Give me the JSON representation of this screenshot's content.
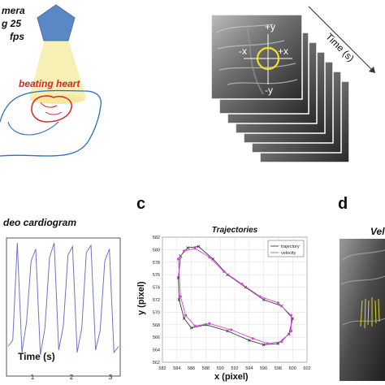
{
  "panel_a": {
    "camera_lines": [
      "mera",
      "g 25",
      "fps"
    ],
    "heart_label": "beating heart"
  },
  "panel_b": {
    "axis_plus_y": "+y",
    "axis_minus_x": "-x",
    "axis_plus_x": "+x",
    "axis_minus_y": "-y",
    "time_label": "Time (s)"
  },
  "panel_video": {
    "title": "deo cardiogram",
    "xlabel": "Time (s)",
    "xticks": [
      "1",
      "2",
      "3"
    ]
  },
  "panel_c": {
    "letter": "c",
    "xlabel": "x (pixel)",
    "ylabel": "y (pixel)"
  },
  "panel_d": {
    "letter": "d",
    "title": "Vel"
  },
  "colors": {
    "camera": "#5a88c6",
    "beam": "#f6f0b4",
    "heart": "#d8262c",
    "trajectory": "#3b3b3b",
    "velocity": "#e044e0",
    "cardiogram": "#6f73c8"
  },
  "chart_data": [
    {
      "type": "line",
      "title": "Trajectories",
      "xlabel": "x (pixel)",
      "ylabel": "y (pixel)",
      "xlim": [
        582,
        602
      ],
      "ylim": [
        562,
        582
      ],
      "xticks": [
        582,
        584,
        586,
        588,
        590,
        592,
        594,
        596,
        598,
        600,
        602
      ],
      "yticks": [
        562,
        564,
        566,
        568,
        570,
        572,
        574,
        576,
        578,
        580,
        582
      ],
      "grid": true,
      "legend_position": "top-right",
      "series": [
        {
          "name": "trajectory",
          "x": [
            584.5,
            585.5,
            587,
            589,
            591,
            593.5,
            596,
            598.5,
            600,
            599.5,
            598,
            596,
            594,
            591,
            588,
            586,
            585,
            584.3,
            584.2,
            584.5
          ],
          "y": [
            579,
            580.3,
            580.5,
            578.5,
            576,
            574,
            572,
            571,
            569,
            566.5,
            565,
            564.8,
            565.5,
            567,
            568,
            567.5,
            569,
            572,
            575.5,
            579
          ]
        },
        {
          "name": "velocity",
          "x": [
            584.2,
            585,
            586.5,
            588.5,
            590.5,
            593,
            595.5,
            598,
            599.8,
            599.8,
            598.5,
            596.5,
            594.5,
            591.5,
            588.5,
            586.5,
            585.2,
            584.5,
            584.2
          ],
          "y": [
            578.5,
            579.8,
            580.2,
            578.8,
            576.5,
            574.5,
            572.5,
            571.5,
            569.5,
            567,
            565.3,
            565,
            565.8,
            567.2,
            568.2,
            567.8,
            569.5,
            572.5,
            578.5
          ]
        }
      ]
    },
    {
      "type": "line",
      "title": "deo cardiogram",
      "xlabel": "Time (s)",
      "xticks": [
        "1",
        "2",
        "3"
      ],
      "series": [
        {
          "values": [
            0.15,
            0.2,
            1.0,
            0.1,
            0.35,
            0.85,
            0.95,
            0.08,
            0.3,
            0.88,
            1.0,
            0.12,
            0.32,
            0.9,
            0.97,
            0.1,
            0.3,
            0.92,
            0.98,
            0.12,
            0.28,
            0.85,
            0.95,
            0.1,
            0.15
          ]
        }
      ]
    }
  ]
}
